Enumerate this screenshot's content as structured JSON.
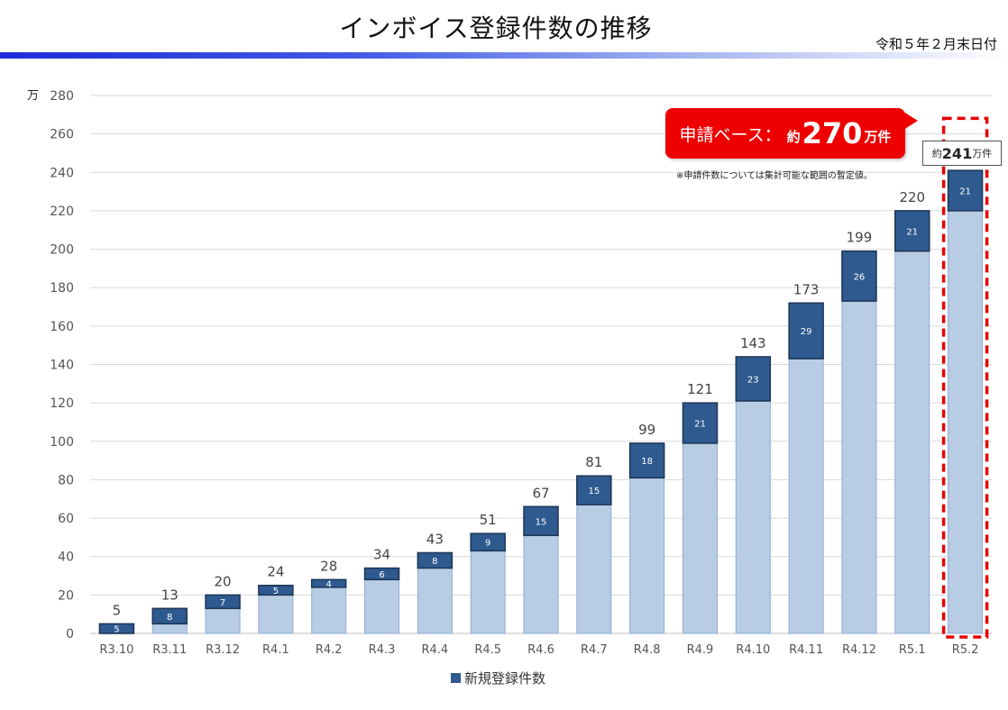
{
  "header": {
    "title": "インボイス登録件数の推移",
    "date": "令和５年２月末日付"
  },
  "chart_data": {
    "type": "bar",
    "stacked": true,
    "y_unit": "万",
    "ylim": [
      0,
      280
    ],
    "yticks": [
      0,
      20,
      40,
      60,
      80,
      100,
      120,
      140,
      160,
      180,
      200,
      220,
      240,
      260,
      280
    ],
    "grid": true,
    "categories": [
      "R3.10",
      "R3.11",
      "R3.12",
      "R4.1",
      "R4.2",
      "R4.3",
      "R4.4",
      "R4.5",
      "R4.6",
      "R4.7",
      "R4.8",
      "R4.9",
      "R4.10",
      "R4.11",
      "R4.12",
      "R5.1",
      "R5.2"
    ],
    "series": [
      {
        "values": [
          0,
          5,
          13,
          20,
          24,
          28,
          34,
          43,
          51,
          67,
          81,
          99,
          121,
          143,
          173,
          199,
          220
        ]
      },
      {
        "name": "新規登録件数",
        "values": [
          5,
          8,
          7,
          5,
          4,
          6,
          8,
          9,
          15,
          15,
          18,
          21,
          23,
          29,
          26,
          21,
          21
        ]
      }
    ],
    "totals": [
      "5",
      "13",
      "20",
      "24",
      "28",
      "34",
      "43",
      "51",
      "67",
      "81",
      "99",
      "121",
      "143",
      "173",
      "199",
      "220",
      ""
    ],
    "legend": "新規登録件数",
    "legend_position": "bottom",
    "colors": {
      "base": "#b8cce4",
      "base_edge": "#8eadd3",
      "new": "#2e5a8f",
      "new_edge": "#1c3556",
      "highlight": "#e60000"
    },
    "callout": {
      "label": "申請ベース：",
      "prefix": "約",
      "value": "270",
      "suffix": "万件",
      "note": "※申請件数については集計可能な範囲の暫定値。"
    },
    "last_total": {
      "prefix": "約",
      "value": "241",
      "suffix": "万件"
    }
  }
}
